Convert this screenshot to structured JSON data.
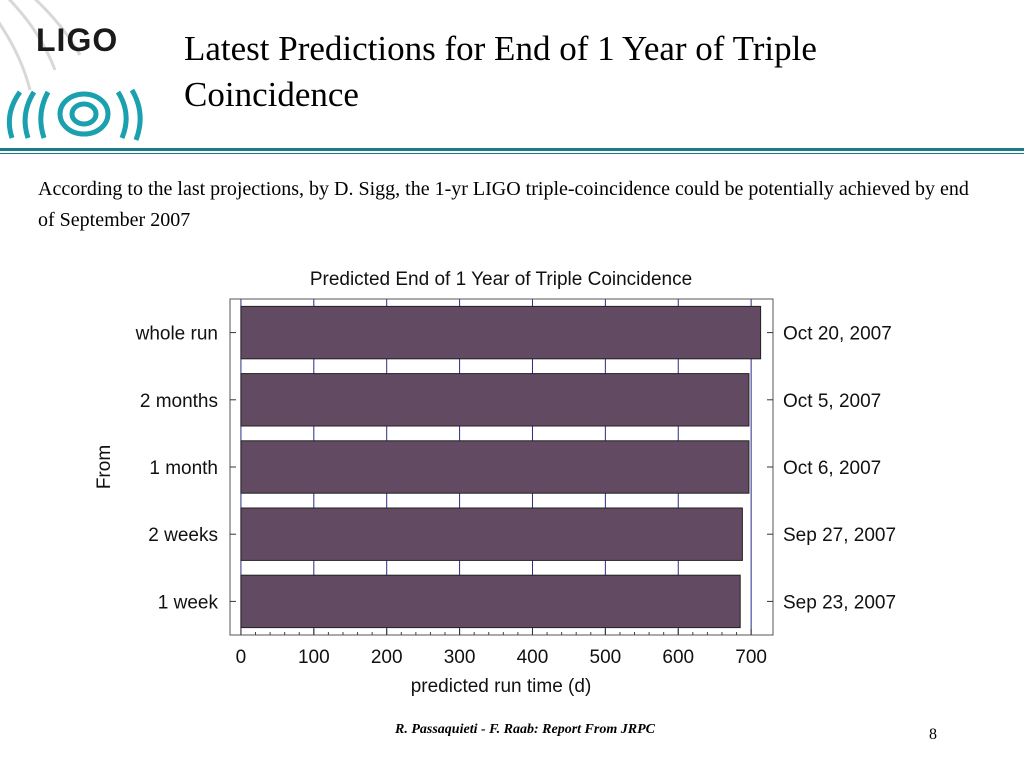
{
  "logo": {
    "text": "LIGO"
  },
  "slide": {
    "title": "Latest Predictions for End of 1 Year of Triple Coincidence",
    "intro": "According to the last projections, by D. Sigg, the 1-yr  LIGO triple-coincidence could be potentially achieved by end of September 2007",
    "footer": "R. Passaquieti - F. Raab: Report From JRPC",
    "page_number": "8"
  },
  "colors": {
    "bar": "#614a62",
    "rule": "#1a7a86",
    "logo_teal": "#1aa0ae",
    "grid": "#2b2b8a"
  },
  "chart_data": {
    "type": "bar",
    "orientation": "horizontal",
    "title": "Predicted End of 1 Year of Triple Coincidence",
    "xlabel": "predicted run time (d)",
    "ylabel": "From",
    "categories": [
      "whole run",
      "2 months",
      "1 month",
      "2 weeks",
      "1 week"
    ],
    "values": [
      713,
      697,
      697,
      688,
      685
    ],
    "right_labels": [
      "Oct 20, 2007",
      "Oct 5, 2007",
      "Oct 6, 2007",
      "Sep 27, 2007",
      "Sep 23, 2007"
    ],
    "xticks": [
      "0",
      "100",
      "200",
      "300",
      "400",
      "500",
      "600",
      "700"
    ],
    "xlim": [
      -15,
      730
    ],
    "grid": true
  }
}
